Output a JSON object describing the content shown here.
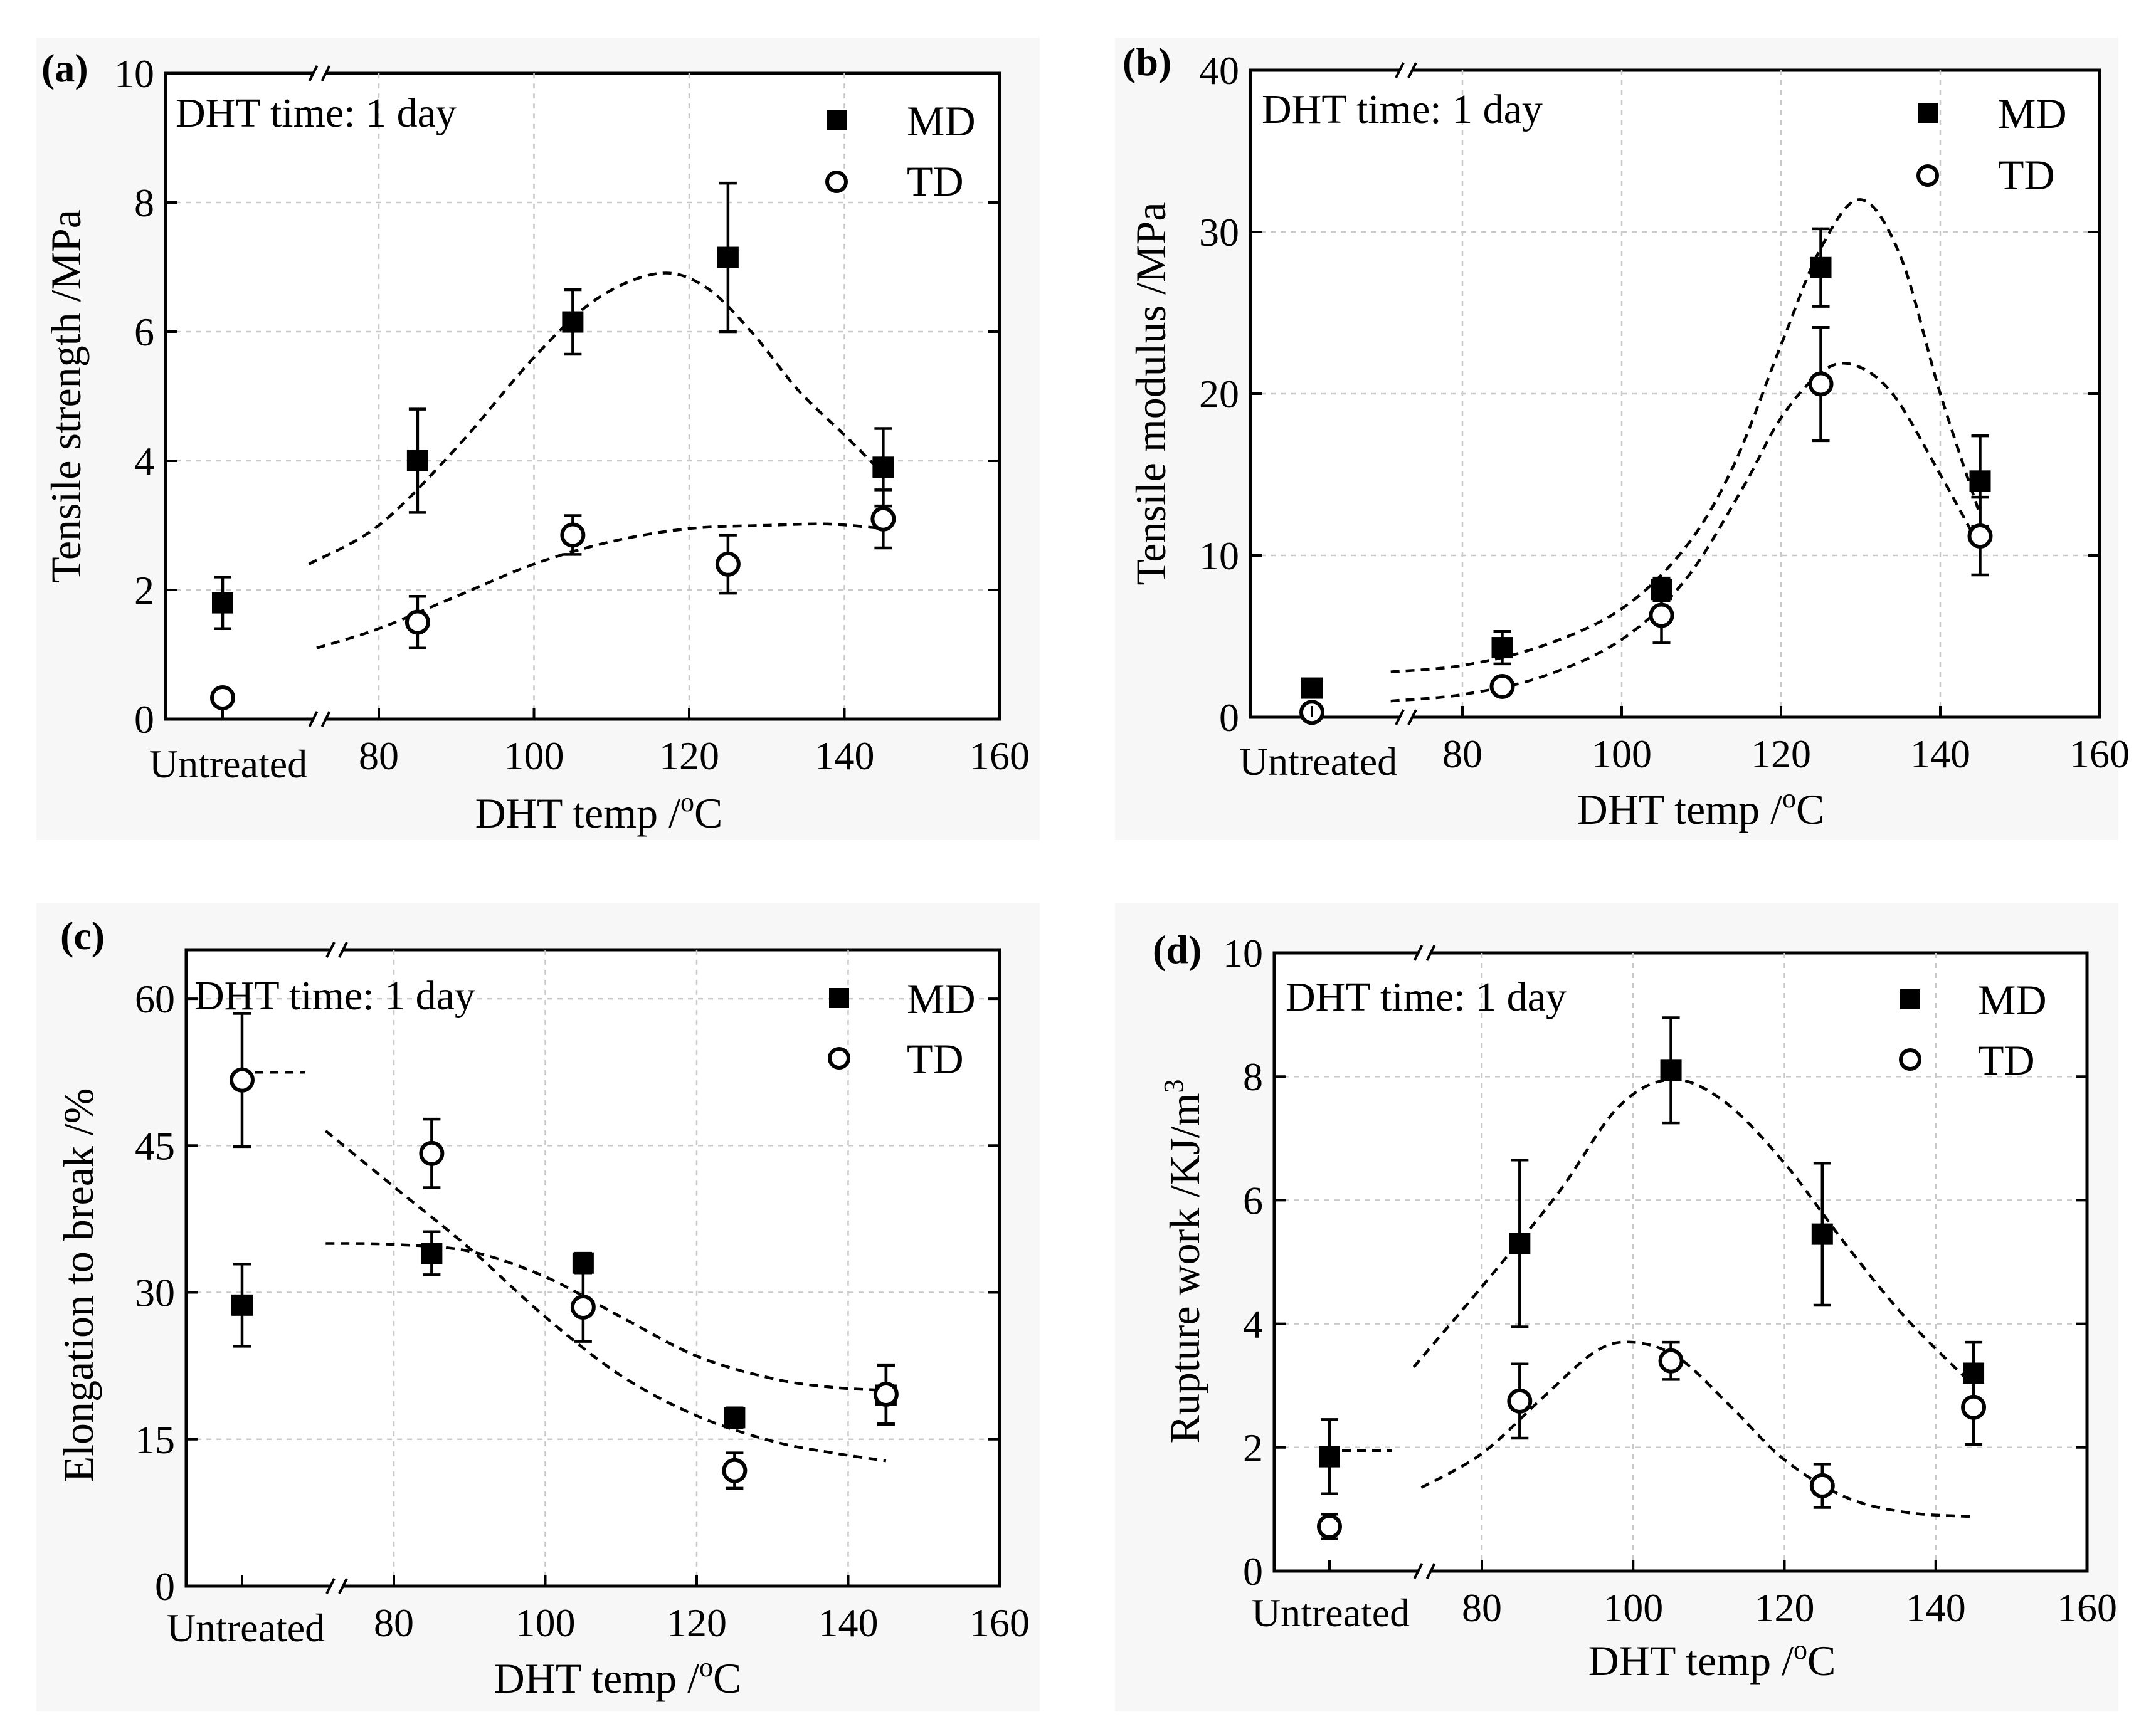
{
  "figure": {
    "panels": [
      "a",
      "b",
      "c",
      "d"
    ]
  },
  "chart_data": [
    {
      "type": "scatter",
      "panel_label": "(a)",
      "title": "",
      "xlabel": "DHT temp /",
      "xlabel_unit": "C",
      "xlabel_sup": "o",
      "ylabel": "Tensile strength /MPa",
      "info_text": "DHT time: 1 day",
      "xlim": [
        70,
        160
      ],
      "ylim": [
        0,
        10
      ],
      "x_ticks": [
        80,
        100,
        120,
        140,
        160
      ],
      "y_ticks": [
        0,
        2,
        4,
        6,
        8,
        10
      ],
      "untreated_label": "Untreated",
      "legend": [
        "MD",
        "TD"
      ],
      "series": [
        {
          "name": "MD",
          "untreated": {
            "y": 1.8,
            "err": 0.4
          },
          "points": [
            {
              "x": 85,
              "y": 4.0,
              "err": 0.8
            },
            {
              "x": 105,
              "y": 6.15,
              "err": 0.5
            },
            {
              "x": 125,
              "y": 7.15,
              "err": 1.15
            },
            {
              "x": 145,
              "y": 3.9,
              "err": 0.6
            }
          ],
          "fit": [
            [
              71,
              2.4
            ],
            [
              80,
              3.0
            ],
            [
              90,
              4.2
            ],
            [
              100,
              5.6
            ],
            [
              108,
              6.5
            ],
            [
              116,
              6.9
            ],
            [
              122,
              6.7
            ],
            [
              128,
              6.0
            ],
            [
              134,
              5.1
            ],
            [
              140,
              4.4
            ],
            [
              145,
              3.8
            ]
          ]
        },
        {
          "name": "TD",
          "untreated": {
            "y": 0.33,
            "err": 0.05
          },
          "points": [
            {
              "x": 85,
              "y": 1.5,
              "err": 0.4
            },
            {
              "x": 105,
              "y": 2.85,
              "err": 0.3
            },
            {
              "x": 125,
              "y": 2.4,
              "err": 0.45
            },
            {
              "x": 145,
              "y": 3.1,
              "err": 0.45
            }
          ],
          "fit": [
            [
              72,
              1.1
            ],
            [
              80,
              1.4
            ],
            [
              90,
              1.9
            ],
            [
              100,
              2.4
            ],
            [
              110,
              2.75
            ],
            [
              120,
              2.95
            ],
            [
              130,
              3.0
            ],
            [
              138,
              3.02
            ],
            [
              145,
              2.95
            ]
          ]
        }
      ]
    },
    {
      "type": "scatter",
      "panel_label": "(b)",
      "title": "",
      "xlabel": "DHT temp /",
      "xlabel_unit": "C",
      "xlabel_sup": "o",
      "ylabel": "Tensile modulus /MPa",
      "info_text": "DHT time: 1 day",
      "xlim": [
        70,
        160
      ],
      "ylim": [
        0,
        40
      ],
      "x_ticks": [
        80,
        100,
        120,
        140,
        160
      ],
      "y_ticks": [
        0,
        10,
        20,
        30,
        40
      ],
      "untreated_label": "Untreated",
      "legend": [
        "MD",
        "TD"
      ],
      "series": [
        {
          "name": "MD",
          "untreated": {
            "y": 1.8,
            "err": 0.3
          },
          "points": [
            {
              "x": 85,
              "y": 4.3,
              "err": 1.0
            },
            {
              "x": 105,
              "y": 7.9,
              "err": 0.7
            },
            {
              "x": 125,
              "y": 27.8,
              "err": 2.4
            },
            {
              "x": 145,
              "y": 14.6,
              "err": 2.8
            }
          ],
          "fit": [
            [
              71,
              2.8
            ],
            [
              80,
              3.2
            ],
            [
              90,
              4.4
            ],
            [
              100,
              6.7
            ],
            [
              108,
              10.5
            ],
            [
              114,
              15.5
            ],
            [
              120,
              23.0
            ],
            [
              125,
              29.0
            ],
            [
              130,
              32.0
            ],
            [
              135,
              28.5
            ],
            [
              140,
              20.0
            ],
            [
              145,
              12.5
            ]
          ]
        },
        {
          "name": "TD",
          "untreated": {
            "y": 0.3,
            "err": 0.2
          },
          "points": [
            {
              "x": 85,
              "y": 1.9,
              "err": 0.3
            },
            {
              "x": 105,
              "y": 6.3,
              "err": 1.7
            },
            {
              "x": 125,
              "y": 20.6,
              "err": 3.5
            },
            {
              "x": 145,
              "y": 11.2,
              "err": 2.4
            }
          ],
          "fit": [
            [
              71,
              1.0
            ],
            [
              80,
              1.4
            ],
            [
              90,
              2.5
            ],
            [
              100,
              4.8
            ],
            [
              108,
              8.5
            ],
            [
              115,
              14.0
            ],
            [
              120,
              18.5
            ],
            [
              125,
              21.3
            ],
            [
              129,
              21.8
            ],
            [
              134,
              20.0
            ],
            [
              140,
              15.0
            ],
            [
              145,
              10.5
            ]
          ]
        }
      ]
    },
    {
      "type": "scatter",
      "panel_label": "(c)",
      "title": "",
      "xlabel": "DHT temp /",
      "xlabel_unit": "C",
      "xlabel_sup": "o",
      "ylabel": "Elongation to break /%",
      "info_text": "DHT time: 1 day",
      "xlim": [
        70,
        160
      ],
      "ylim": [
        0,
        65
      ],
      "x_ticks": [
        80,
        100,
        120,
        140,
        160
      ],
      "y_ticks": [
        0,
        15,
        30,
        45,
        60
      ],
      "untreated_label": "Untreated",
      "legend": [
        "MD",
        "TD"
      ],
      "series": [
        {
          "name": "MD",
          "untreated": {
            "y": 28.7,
            "err": 4.2
          },
          "points": [
            {
              "x": 85,
              "y": 34.0,
              "err": 2.2
            },
            {
              "x": 105,
              "y": 33.0,
              "err": 1.0
            },
            {
              "x": 125,
              "y": 17.2,
              "err": 1.0
            },
            {
              "x": 145,
              "y": 19.5,
              "err": 3.0
            }
          ],
          "fit": [
            [
              71,
              35.0
            ],
            [
              80,
              34.9
            ],
            [
              90,
              34.2
            ],
            [
              100,
              31.6
            ],
            [
              110,
              27.5
            ],
            [
              120,
              23.5
            ],
            [
              130,
              21.2
            ],
            [
              138,
              20.3
            ],
            [
              145,
              20.0
            ]
          ]
        },
        {
          "name": "TD",
          "untreated": {
            "y": 51.7,
            "err": 6.8,
            "dash_y": 52.5
          },
          "points": [
            {
              "x": 85,
              "y": 44.2,
              "err": 3.5
            },
            {
              "x": 105,
              "y": 28.5,
              "err": 3.5
            },
            {
              "x": 125,
              "y": 11.8,
              "err": 1.8
            },
            {
              "x": 145,
              "y": 19.6,
              "err": 3.0
            }
          ],
          "fit": [
            [
              71,
              46.5
            ],
            [
              80,
              40.8
            ],
            [
              90,
              34.5
            ],
            [
              100,
              27.5
            ],
            [
              110,
              21.5
            ],
            [
              120,
              17.4
            ],
            [
              130,
              14.8
            ],
            [
              138,
              13.6
            ],
            [
              145,
              12.8
            ]
          ]
        }
      ]
    },
    {
      "type": "scatter",
      "panel_label": "(d)",
      "title": "",
      "xlabel": "DHT temp /",
      "xlabel_unit": "C",
      "xlabel_sup": "o",
      "ylabel": "Rupture work /KJ/m",
      "ylabel_sup": "3",
      "info_text": "DHT time: 1 day",
      "xlim": [
        70,
        160
      ],
      "ylim": [
        0,
        10
      ],
      "x_ticks": [
        80,
        100,
        120,
        140,
        160
      ],
      "y_ticks": [
        0,
        2,
        4,
        6,
        8,
        10
      ],
      "untreated_label": "Untreated",
      "legend": [
        "MD",
        "TD"
      ],
      "series": [
        {
          "name": "MD",
          "untreated": {
            "y": 1.85,
            "err": 0.6,
            "dash_y": 1.95
          },
          "points": [
            {
              "x": 85,
              "y": 5.3,
              "err": 1.35
            },
            {
              "x": 105,
              "y": 8.1,
              "err": 0.85
            },
            {
              "x": 125,
              "y": 5.45,
              "err": 1.15
            },
            {
              "x": 145,
              "y": 3.2,
              "err": 0.5
            }
          ],
          "fit": [
            [
              71,
              3.3
            ],
            [
              80,
              4.6
            ],
            [
              90,
              6.1
            ],
            [
              98,
              7.5
            ],
            [
              105,
              7.95
            ],
            [
              112,
              7.6
            ],
            [
              120,
              6.6
            ],
            [
              128,
              5.3
            ],
            [
              136,
              4.1
            ],
            [
              145,
              3.0
            ]
          ]
        },
        {
          "name": "TD",
          "untreated": {
            "y": 0.72,
            "err": 0.2
          },
          "points": [
            {
              "x": 85,
              "y": 2.75,
              "err": 0.6
            },
            {
              "x": 105,
              "y": 3.4,
              "err": 0.3
            },
            {
              "x": 125,
              "y": 1.38,
              "err": 0.35
            },
            {
              "x": 145,
              "y": 2.65,
              "err": 0.6
            }
          ],
          "fit": [
            [
              72,
              1.35
            ],
            [
              80,
              1.9
            ],
            [
              88,
              2.8
            ],
            [
              95,
              3.55
            ],
            [
              100,
              3.7
            ],
            [
              106,
              3.45
            ],
            [
              113,
              2.65
            ],
            [
              120,
              1.8
            ],
            [
              128,
              1.2
            ],
            [
              136,
              0.95
            ],
            [
              145,
              0.88
            ]
          ]
        }
      ]
    }
  ]
}
